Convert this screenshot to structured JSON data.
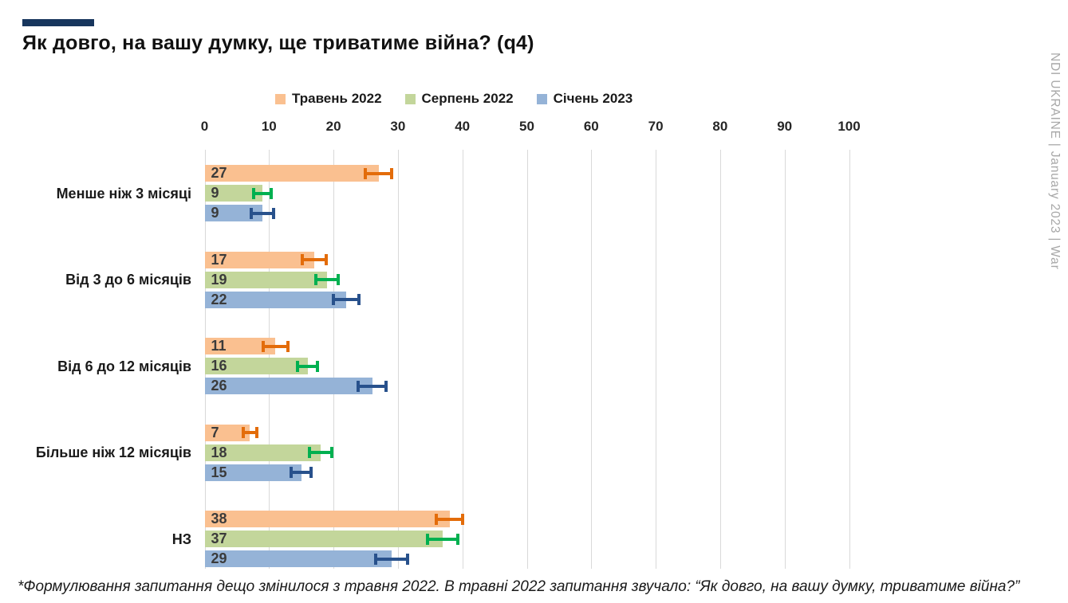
{
  "title": "Як довго, на вашу думку, ще триватиме війна? (q4)",
  "side_caption": "NDI UKRAINE | January 2023 | War",
  "footnote": "*Формулювання запитання дещо змінилося з травня 2022. В травні 2022 запитання звучало: “Як довго, на вашу думку, триватиме війна?”",
  "accent_color": "#17365D",
  "gridline_color": "#D9D9D9",
  "chart_data": {
    "type": "bar",
    "orientation": "horizontal",
    "grid": true,
    "legend_position": "top",
    "error_bars": true,
    "xlim": [
      0,
      100
    ],
    "xticks": [
      0,
      10,
      20,
      30,
      40,
      50,
      60,
      70,
      80,
      90,
      100
    ],
    "categories": [
      "Менше ніж 3 місяці",
      "Від 3 до 6 місяців",
      "Від 6 до 12 місяців",
      "Більше ніж 12 місяців",
      "НЗ"
    ],
    "series": [
      {
        "name": "Травень 2022",
        "color": "#FAC090",
        "error_color": "#E36C0A",
        "values": [
          27,
          17,
          11,
          7,
          38
        ],
        "error_margins": [
          2.3,
          2.1,
          2.2,
          1.3,
          2.3
        ]
      },
      {
        "name": "Серпень 2022",
        "color": "#C3D69B",
        "error_color": "#00B050",
        "values": [
          9,
          19,
          16,
          18,
          37
        ],
        "error_margins": [
          1.6,
          2.0,
          1.8,
          2.0,
          2.6
        ]
      },
      {
        "name": "Січень 2023",
        "color": "#95B3D7",
        "error_color": "#28518C",
        "values": [
          9,
          22,
          26,
          15,
          29
        ],
        "error_margins": [
          2.0,
          2.2,
          2.4,
          1.8,
          2.7
        ]
      }
    ]
  }
}
